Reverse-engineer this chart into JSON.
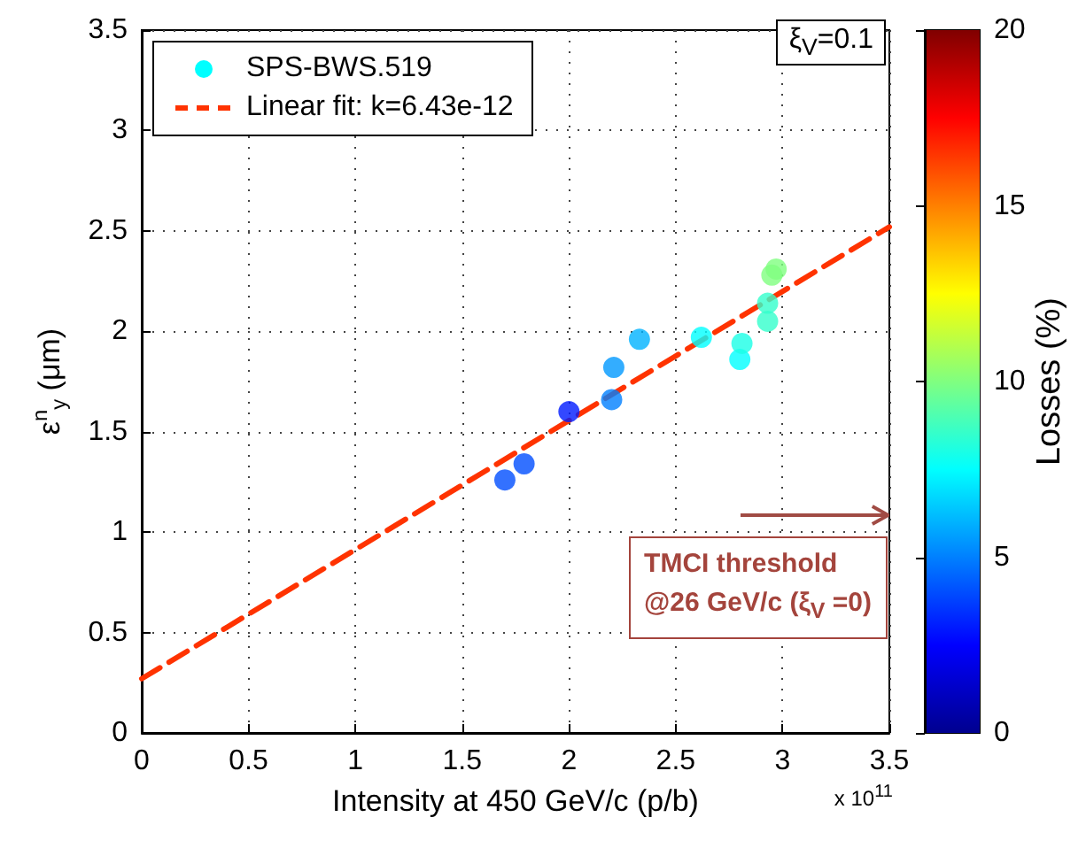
{
  "chart_data": {
    "type": "scatter",
    "xlabel": "Intensity at 450 GeV/c (p/b)",
    "ylabel": "ε$^{n}$$_{y}$ (μm)",
    "clabel": "Losses (%)",
    "annotations": [
      "ξ$_{V}$=0.1",
      "TMCI threshold\n@26 GeV/c (ξ$_{V}$ =0)",
      "x 10$^{11}$"
    ],
    "xlim": [
      0,
      3.5
    ],
    "xticks": [
      0,
      0.5,
      1,
      1.5,
      2,
      2.5,
      3,
      3.5
    ],
    "ylim": [
      0,
      3.5
    ],
    "yticks": [
      0,
      0.5,
      1,
      1.5,
      2,
      2.5,
      3,
      3.5
    ],
    "clim": [
      0,
      20
    ],
    "cticks": [
      0,
      5,
      10,
      15,
      20
    ],
    "grid": true,
    "legend": "top left",
    "series": [
      {
        "name": "SPS-BWS.519",
        "type": "scatter",
        "marker": "circle",
        "colors": [
          "#004dff",
          "#004dff",
          "#001aff",
          "#0080ff",
          "#0099ff",
          "#00b3ff",
          "#00ffff",
          "#00ffff",
          "#1affe6",
          "#33ffcc",
          "#33ffcc",
          "#80ff80",
          "#80ff80"
        ],
        "x": [
          1.7,
          1.79,
          2.0,
          2.2,
          2.21,
          2.33,
          2.62,
          2.8,
          2.81,
          2.93,
          2.93,
          2.95,
          2.97
        ],
        "values": [
          1.26,
          1.34,
          1.6,
          1.66,
          1.82,
          1.96,
          1.97,
          1.86,
          1.94,
          2.05,
          2.14,
          2.28,
          2.31
        ],
        "cvalues": [
          4,
          4,
          3,
          5,
          5.5,
          6,
          7.5,
          7.5,
          8,
          8.5,
          8.5,
          10,
          10
        ]
      },
      {
        "name": "Linear fit: k=6.43e-12",
        "type": "line",
        "color": "#ff3300",
        "line_style": "dashed",
        "marker": "none",
        "x": [
          0,
          3.5
        ],
        "values": [
          0.27,
          2.52
        ]
      }
    ]
  }
}
